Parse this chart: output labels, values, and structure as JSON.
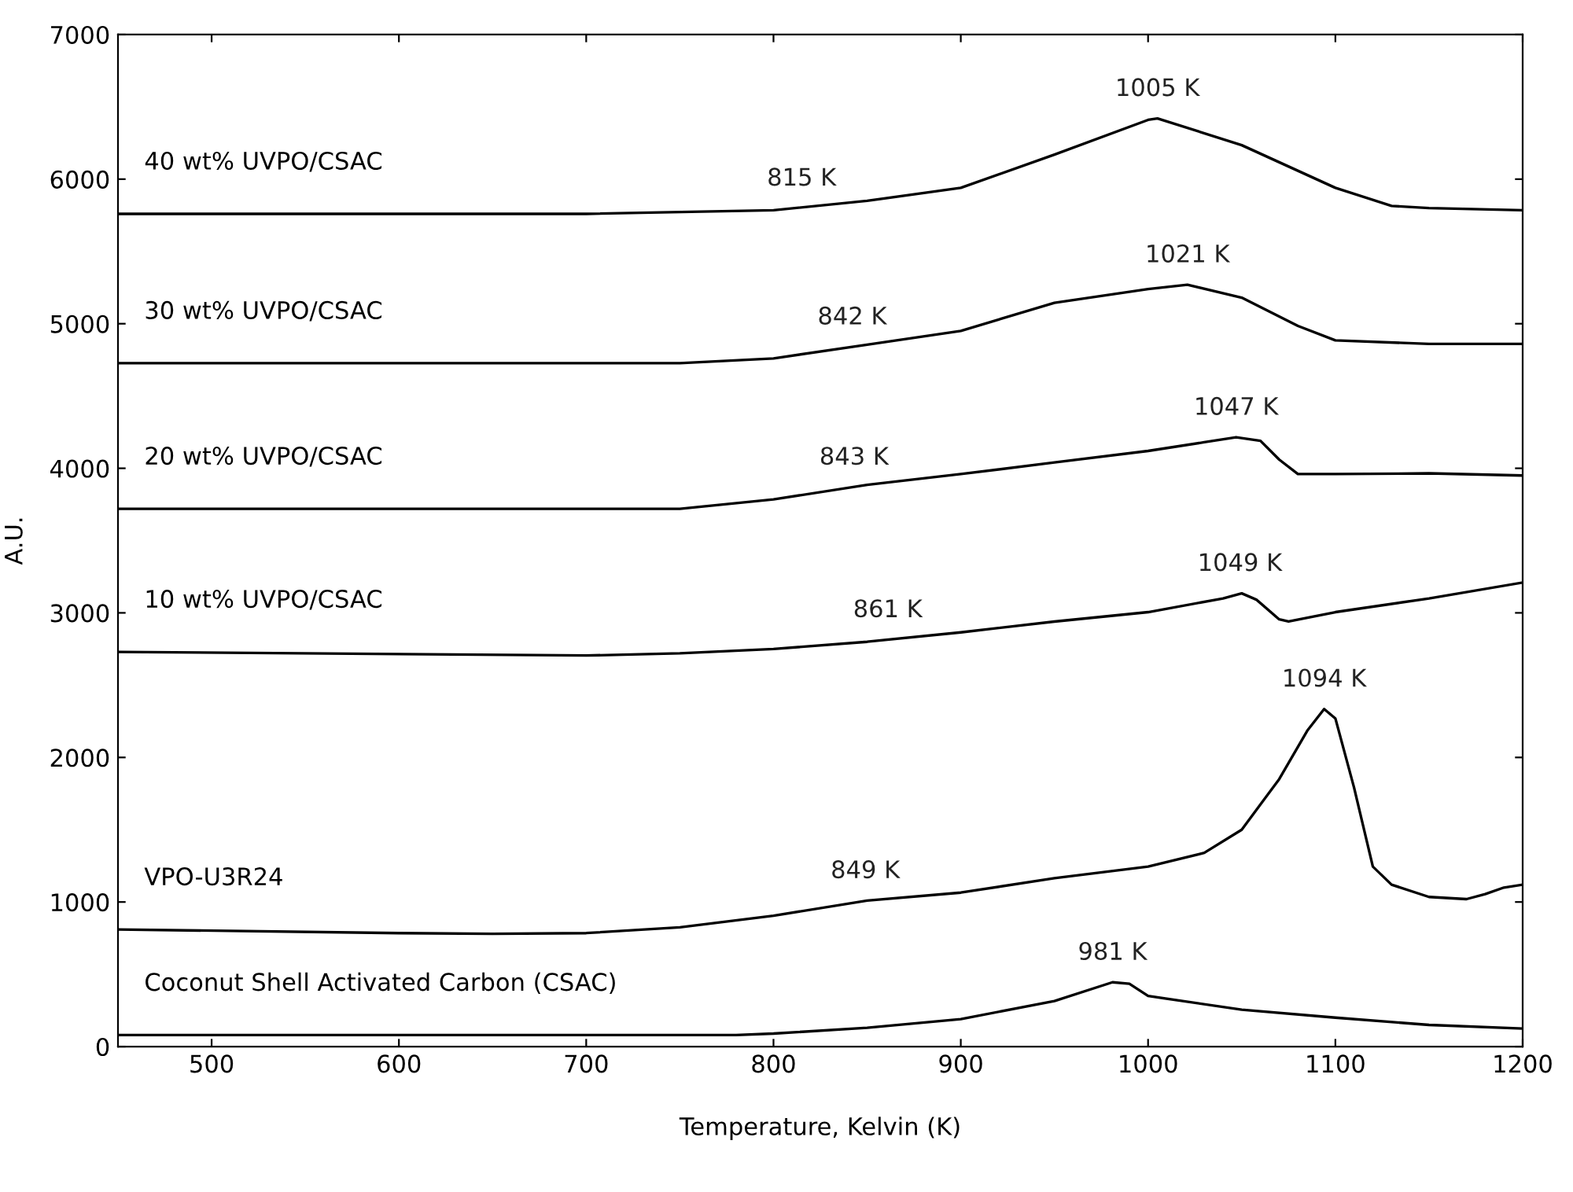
{
  "chart_data": {
    "type": "line",
    "xlabel": "Temperature, Kelvin (K)",
    "ylabel": "A.U.",
    "xlim": [
      450,
      1200
    ],
    "ylim": [
      0,
      7000
    ],
    "xticks": [
      500,
      600,
      700,
      800,
      900,
      1000,
      1100,
      1200
    ],
    "yticks": [
      0,
      1000,
      2000,
      3000,
      4000,
      5000,
      6000,
      7000
    ],
    "grid": false,
    "legend": false,
    "marker": "none",
    "line_style": "solid",
    "series": [
      {
        "name": "40 wt% UVPO/CSAC",
        "color": "#000000",
        "x": [
          450,
          700,
          800,
          850,
          900,
          950,
          1000,
          1005,
          1050,
          1100,
          1130,
          1150,
          1200
        ],
        "values": [
          5760,
          5760,
          5785,
          5850,
          5940,
          6170,
          6410,
          6420,
          6235,
          5940,
          5815,
          5800,
          5785
        ]
      },
      {
        "name": "30 wt% UVPO/CSAC",
        "color": "#000000",
        "x": [
          450,
          750,
          800,
          850,
          900,
          950,
          1000,
          1021,
          1050,
          1080,
          1100,
          1150,
          1200
        ],
        "values": [
          4727,
          4727,
          4760,
          4855,
          4950,
          5145,
          5240,
          5270,
          5180,
          4985,
          4885,
          4860,
          4860
        ]
      },
      {
        "name": "20 wt% UVPO/CSAC",
        "color": "#000000",
        "x": [
          450,
          750,
          800,
          850,
          900,
          950,
          1000,
          1030,
          1047,
          1060,
          1070,
          1080,
          1100,
          1150,
          1200
        ],
        "values": [
          3720,
          3720,
          3785,
          3885,
          3960,
          4040,
          4120,
          4180,
          4215,
          4190,
          4060,
          3960,
          3960,
          3965,
          3950
        ]
      },
      {
        "name": "10 wt% UVPO/CSAC",
        "color": "#000000",
        "x": [
          450,
          700,
          750,
          800,
          850,
          900,
          950,
          1000,
          1040,
          1050,
          1058,
          1070,
          1075,
          1100,
          1150,
          1200
        ],
        "values": [
          2730,
          2705,
          2720,
          2750,
          2800,
          2865,
          2940,
          3005,
          3100,
          3135,
          3090,
          2955,
          2940,
          3005,
          3100,
          3210
        ]
      },
      {
        "name": "VPO-U3R24",
        "color": "#000000",
        "x": [
          450,
          600,
          650,
          700,
          750,
          800,
          850,
          900,
          950,
          1000,
          1030,
          1050,
          1070,
          1085,
          1094,
          1100,
          1110,
          1120,
          1130,
          1150,
          1170,
          1180,
          1190,
          1200
        ],
        "values": [
          810,
          785,
          780,
          785,
          825,
          905,
          1010,
          1065,
          1165,
          1245,
          1340,
          1500,
          1850,
          2185,
          2335,
          2270,
          1790,
          1245,
          1120,
          1035,
          1020,
          1055,
          1100,
          1120
        ]
      },
      {
        "name": "Coconut Shell Activated Carbon (CSAC)",
        "color": "#000000",
        "x": [
          450,
          780,
          800,
          850,
          900,
          950,
          981,
          990,
          1000,
          1050,
          1100,
          1150,
          1200
        ],
        "values": [
          80,
          80,
          90,
          130,
          190,
          315,
          445,
          435,
          350,
          255,
          200,
          150,
          125
        ]
      }
    ],
    "annotations": [
      {
        "text": "815 K",
        "x": 815,
        "y": 5800
      },
      {
        "text": "1005 K",
        "x": 1005,
        "y": 6420
      },
      {
        "text": "842 K",
        "x": 842,
        "y": 4840
      },
      {
        "text": "1021 K",
        "x": 1021,
        "y": 5270
      },
      {
        "text": "843 K",
        "x": 843,
        "y": 3870
      },
      {
        "text": "1047 K",
        "x": 1047,
        "y": 4215
      },
      {
        "text": "861 K",
        "x": 861,
        "y": 2815
      },
      {
        "text": "1049 K",
        "x": 1049,
        "y": 3135
      },
      {
        "text": "849 K",
        "x": 849,
        "y": 1010
      },
      {
        "text": "1094 K",
        "x": 1094,
        "y": 2335
      },
      {
        "text": "981 K",
        "x": 981,
        "y": 445
      }
    ]
  }
}
